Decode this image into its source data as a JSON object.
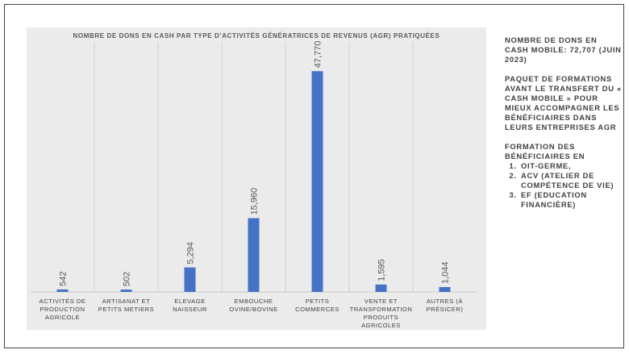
{
  "chart_data": {
    "type": "bar",
    "title": "NOMBRE DE DONS EN CASH PAR TYPE D’ACTIVITÉS GÉNÉRATRICES DE REVENUS (AGR) PRATIQUÉES",
    "categories": [
      "Activités de production agricole",
      "Artisanat et petits metiers",
      "Elevage naisseur",
      "Embouche ovine/bovine",
      "Petits commerces",
      "Vente et transformation produits agricoles",
      "Autres (à présicer)"
    ],
    "values": [
      542,
      502,
      5294,
      15960,
      47770,
      1595,
      1044
    ],
    "value_labels": [
      "542",
      "502",
      "5,294",
      "15,960",
      "47,770",
      "1,595",
      "1,044"
    ],
    "ylim": [
      0,
      52000
    ],
    "grid": "vertical separators",
    "legend": "none",
    "bar_color": "#4472c4"
  },
  "side_panel": {
    "total": "NOMBRE DE DONS EN CASH MOBILE: 72,707 (JUIN 2023)",
    "package": "PAQUET DE FORMATIONS AVANT LE TRANSFERT DU « CASH MOBILE » POUR MIEUX ACCOMPAGNER LES BÉNÉFICIAIRES DANS LEURS ENTREPRISES AGR",
    "training_heading": "FORMATION DES BÉNÉFICIAIRES EN",
    "training_items": [
      "OIT-GERME,",
      "ACV (ATELIER DE COMPÉTENCE DE VIE)",
      "EF (EDUCATION FINANCIÈRE)"
    ]
  }
}
